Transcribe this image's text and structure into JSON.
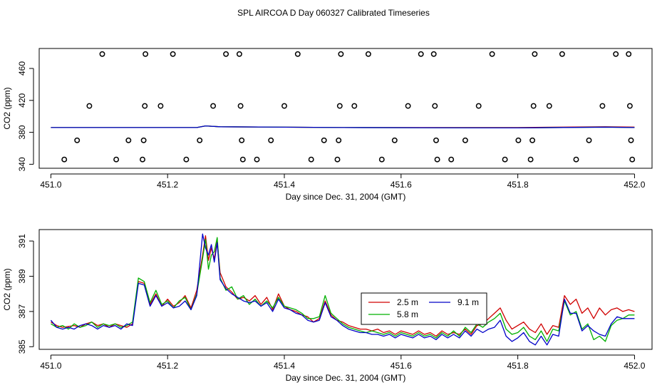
{
  "title": "SPL AIRCOA D  Day 060327  Calibrated Timeseries",
  "chart_data": [
    {
      "type": "scatter",
      "title": "SPL AIRCOA D  Day 060327  Calibrated Timeseries",
      "xlabel": "Day since Dec. 31, 2004 (GMT)",
      "ylabel": "CO2 (ppm)",
      "xlim": [
        450.98,
        452.03
      ],
      "ylim": [
        335,
        485
      ],
      "xticks": [
        451.0,
        451.2,
        451.4,
        451.6,
        451.8,
        452.0
      ],
      "xtick_labels": [
        "451.0",
        "451.2",
        "451.4",
        "451.6",
        "451.8",
        "452.0"
      ],
      "yticks": [
        340,
        380,
        420,
        460
      ],
      "ytick_labels": [
        "340",
        "380",
        "420",
        "460"
      ],
      "points": [
        [
          451.023,
          346
        ],
        [
          451.045,
          370
        ],
        [
          451.066,
          413
        ],
        [
          451.088,
          478
        ],
        [
          451.112,
          346
        ],
        [
          451.133,
          370
        ],
        [
          451.157,
          346
        ],
        [
          451.159,
          370
        ],
        [
          451.161,
          413
        ],
        [
          451.162,
          478
        ],
        [
          451.188,
          413
        ],
        [
          451.209,
          478
        ],
        [
          451.232,
          346
        ],
        [
          451.255,
          370
        ],
        [
          451.278,
          413
        ],
        [
          451.3,
          478
        ],
        [
          451.323,
          478
        ],
        [
          451.325,
          413
        ],
        [
          451.327,
          370
        ],
        [
          451.329,
          346
        ],
        [
          451.353,
          346
        ],
        [
          451.377,
          370
        ],
        [
          451.4,
          413
        ],
        [
          451.423,
          478
        ],
        [
          451.446,
          346
        ],
        [
          451.468,
          370
        ],
        [
          451.491,
          346
        ],
        [
          451.493,
          370
        ],
        [
          451.495,
          413
        ],
        [
          451.497,
          478
        ],
        [
          451.52,
          413
        ],
        [
          451.544,
          478
        ],
        [
          451.567,
          346
        ],
        [
          451.589,
          370
        ],
        [
          451.612,
          413
        ],
        [
          451.634,
          478
        ],
        [
          451.656,
          478
        ],
        [
          451.658,
          413
        ],
        [
          451.66,
          370
        ],
        [
          451.662,
          346
        ],
        [
          451.686,
          346
        ],
        [
          451.71,
          370
        ],
        [
          451.733,
          413
        ],
        [
          451.756,
          478
        ],
        [
          451.778,
          346
        ],
        [
          451.801,
          370
        ],
        [
          451.822,
          346
        ],
        [
          451.825,
          370
        ],
        [
          451.827,
          413
        ],
        [
          451.829,
          478
        ],
        [
          451.854,
          413
        ],
        [
          451.876,
          478
        ],
        [
          451.9,
          346
        ],
        [
          451.922,
          370
        ],
        [
          451.945,
          413
        ],
        [
          451.968,
          478
        ],
        [
          451.99,
          478
        ],
        [
          451.992,
          413
        ],
        [
          451.994,
          370
        ],
        [
          451.996,
          346
        ]
      ],
      "series": [
        {
          "name": "2.5 m",
          "color": "#d00000",
          "x": [
            451.0,
            451.25,
            451.265,
            451.29,
            451.5,
            451.8,
            451.95,
            452.0
          ],
          "y": [
            386,
            386,
            388,
            387,
            386,
            386,
            387,
            386.5
          ]
        },
        {
          "name": "5.8 m",
          "color": "#00b000",
          "x": [
            451.0,
            451.25,
            451.265,
            451.29,
            451.5,
            451.8,
            451.95,
            452.0
          ],
          "y": [
            386,
            386,
            388,
            387,
            386,
            385.5,
            386.5,
            386
          ]
        },
        {
          "name": "9.1 m",
          "color": "#0000c8",
          "x": [
            451.0,
            451.25,
            451.265,
            451.29,
            451.5,
            451.8,
            451.95,
            452.0
          ],
          "y": [
            386,
            386,
            388,
            387,
            386,
            385.5,
            386.5,
            386
          ]
        }
      ]
    },
    {
      "type": "line",
      "xlabel": "Day since Dec. 31, 2004 (GMT)",
      "ylabel": "CO2 (ppm)",
      "xlim": [
        450.98,
        452.03
      ],
      "ylim": [
        384.85,
        391.65
      ],
      "xticks": [
        451.0,
        451.2,
        451.4,
        451.6,
        451.8,
        452.0
      ],
      "xtick_labels": [
        "451.0",
        "451.2",
        "451.4",
        "451.6",
        "451.8",
        "452.0"
      ],
      "yticks": [
        385,
        387,
        389,
        391
      ],
      "ytick_labels": [
        "385",
        "387",
        "389",
        "391"
      ],
      "series": [
        {
          "name": "2.5 m",
          "color": "#d00000",
          "x": [
            451.0,
            451.01,
            451.02,
            451.03,
            451.04,
            451.05,
            451.06,
            451.07,
            451.08,
            451.09,
            451.1,
            451.11,
            451.12,
            451.13,
            451.14,
            451.15,
            451.16,
            451.17,
            451.18,
            451.19,
            451.2,
            451.21,
            451.22,
            451.23,
            451.24,
            451.25,
            451.26,
            451.265,
            451.27,
            451.275,
            451.28,
            451.285,
            451.29,
            451.3,
            451.31,
            451.32,
            451.33,
            451.34,
            451.35,
            451.36,
            451.37,
            451.38,
            451.39,
            451.4,
            451.41,
            451.42,
            451.43,
            451.44,
            451.45,
            451.46,
            451.47,
            451.48,
            451.49,
            451.5,
            451.51,
            451.52,
            451.53,
            451.54,
            451.55,
            451.56,
            451.57,
            451.58,
            451.59,
            451.6,
            451.61,
            451.62,
            451.63,
            451.64,
            451.65,
            451.66,
            451.67,
            451.68,
            451.69,
            451.7,
            451.71,
            451.72,
            451.73,
            451.74,
            451.75,
            451.76,
            451.77,
            451.78,
            451.79,
            451.8,
            451.81,
            451.82,
            451.83,
            451.84,
            451.85,
            451.86,
            451.87,
            451.88,
            451.89,
            451.9,
            451.91,
            451.92,
            451.93,
            451.94,
            451.95,
            451.96,
            451.97,
            451.98,
            451.99,
            452.0
          ],
          "y": [
            386.4,
            386.2,
            386.1,
            386.15,
            386.2,
            386.1,
            386.3,
            386.4,
            386.2,
            386.3,
            386.1,
            386.3,
            386.2,
            386.1,
            386.3,
            388.7,
            388.6,
            387.4,
            388.0,
            387.3,
            387.7,
            387.3,
            387.5,
            387.9,
            387.2,
            388.2,
            390.2,
            391.3,
            389.9,
            390.6,
            390.0,
            391.0,
            389.2,
            388.4,
            388.1,
            387.7,
            387.8,
            387.6,
            387.9,
            387.4,
            387.8,
            387.1,
            388.0,
            387.3,
            387.1,
            387.0,
            386.8,
            386.7,
            386.4,
            386.6,
            387.6,
            386.8,
            386.5,
            386.4,
            386.2,
            386.1,
            386.0,
            386.0,
            385.9,
            386.0,
            385.8,
            385.9,
            385.7,
            385.9,
            385.8,
            385.7,
            385.9,
            385.7,
            385.8,
            385.6,
            385.9,
            385.7,
            385.8,
            385.7,
            386.0,
            385.7,
            386.2,
            386.3,
            386.6,
            386.9,
            387.2,
            386.5,
            386.0,
            386.2,
            386.4,
            386.0,
            385.8,
            386.3,
            385.7,
            386.2,
            386.1,
            387.9,
            387.4,
            387.7,
            386.9,
            387.2,
            386.6,
            387.2,
            386.8,
            387.1,
            387.2,
            387.0,
            387.1,
            387.0
          ]
        },
        {
          "name": "5.8 m",
          "color": "#00b000",
          "x": [
            451.0,
            451.01,
            451.02,
            451.03,
            451.04,
            451.05,
            451.06,
            451.07,
            451.08,
            451.09,
            451.1,
            451.11,
            451.12,
            451.13,
            451.14,
            451.15,
            451.16,
            451.17,
            451.18,
            451.19,
            451.2,
            451.21,
            451.22,
            451.23,
            451.24,
            451.25,
            451.26,
            451.265,
            451.27,
            451.275,
            451.28,
            451.285,
            451.29,
            451.3,
            451.31,
            451.32,
            451.33,
            451.34,
            451.35,
            451.36,
            451.37,
            451.38,
            451.39,
            451.4,
            451.41,
            451.42,
            451.43,
            451.44,
            451.45,
            451.46,
            451.47,
            451.48,
            451.49,
            451.5,
            451.51,
            451.52,
            451.53,
            451.54,
            451.55,
            451.56,
            451.57,
            451.58,
            451.59,
            451.6,
            451.61,
            451.62,
            451.63,
            451.64,
            451.65,
            451.66,
            451.67,
            451.68,
            451.69,
            451.7,
            451.71,
            451.72,
            451.73,
            451.74,
            451.75,
            451.76,
            451.77,
            451.78,
            451.79,
            451.8,
            451.81,
            451.82,
            451.83,
            451.84,
            451.85,
            451.86,
            451.87,
            451.88,
            451.89,
            451.9,
            451.91,
            451.92,
            451.93,
            451.94,
            451.95,
            451.96,
            451.97,
            451.98,
            451.99,
            452.0
          ],
          "y": [
            386.3,
            386.1,
            386.2,
            386.0,
            386.3,
            386.1,
            386.2,
            386.4,
            386.1,
            386.3,
            386.2,
            386.3,
            386.1,
            386.2,
            386.4,
            388.9,
            388.7,
            387.5,
            388.2,
            387.4,
            387.6,
            387.2,
            387.6,
            387.8,
            387.1,
            388.0,
            390.0,
            391.1,
            389.4,
            390.2,
            390.4,
            391.2,
            388.9,
            388.2,
            388.4,
            387.7,
            387.9,
            387.4,
            387.7,
            387.3,
            387.6,
            387.2,
            387.8,
            387.3,
            387.2,
            387.1,
            386.9,
            386.6,
            386.6,
            386.7,
            387.9,
            386.9,
            386.6,
            386.3,
            386.1,
            386.0,
            385.9,
            385.8,
            385.9,
            385.8,
            385.7,
            385.8,
            385.6,
            385.8,
            385.7,
            385.6,
            385.8,
            385.6,
            385.7,
            385.5,
            385.8,
            385.6,
            385.9,
            385.6,
            386.1,
            385.8,
            386.3,
            386.1,
            386.4,
            386.6,
            386.9,
            386.0,
            385.7,
            385.8,
            386.1,
            385.6,
            385.4,
            385.9,
            385.3,
            386.0,
            385.9,
            387.6,
            386.8,
            387.0,
            386.0,
            386.3,
            385.4,
            385.6,
            385.3,
            386.2,
            386.5,
            386.6,
            386.8,
            386.8
          ]
        },
        {
          "name": "9.1 m",
          "color": "#0000c8",
          "x": [
            451.0,
            451.01,
            451.02,
            451.03,
            451.04,
            451.05,
            451.06,
            451.07,
            451.08,
            451.09,
            451.1,
            451.11,
            451.12,
            451.13,
            451.14,
            451.15,
            451.16,
            451.17,
            451.18,
            451.19,
            451.2,
            451.21,
            451.22,
            451.23,
            451.24,
            451.25,
            451.26,
            451.265,
            451.27,
            451.275,
            451.28,
            451.285,
            451.29,
            451.3,
            451.31,
            451.32,
            451.33,
            451.34,
            451.35,
            451.36,
            451.37,
            451.38,
            451.39,
            451.4,
            451.41,
            451.42,
            451.43,
            451.44,
            451.45,
            451.46,
            451.47,
            451.48,
            451.49,
            451.5,
            451.51,
            451.52,
            451.53,
            451.54,
            451.55,
            451.56,
            451.57,
            451.58,
            451.59,
            451.6,
            451.61,
            451.62,
            451.63,
            451.64,
            451.65,
            451.66,
            451.67,
            451.68,
            451.69,
            451.7,
            451.71,
            451.72,
            451.73,
            451.74,
            451.75,
            451.76,
            451.77,
            451.78,
            451.79,
            451.8,
            451.81,
            451.82,
            451.83,
            451.84,
            451.85,
            451.86,
            451.87,
            451.88,
            451.89,
            451.9,
            451.91,
            451.92,
            451.93,
            451.94,
            451.95,
            451.96,
            451.97,
            451.98,
            451.99,
            452.0
          ],
          "y": [
            386.5,
            386.1,
            386.0,
            386.1,
            386.0,
            386.2,
            386.3,
            386.2,
            386.0,
            386.2,
            386.1,
            386.2,
            386.0,
            386.3,
            386.2,
            388.6,
            388.5,
            387.3,
            387.9,
            387.3,
            387.5,
            387.2,
            387.3,
            387.6,
            387.1,
            387.9,
            391.4,
            390.6,
            390.2,
            390.8,
            389.8,
            390.9,
            388.8,
            388.3,
            388.0,
            387.8,
            387.6,
            387.5,
            387.6,
            387.3,
            387.5,
            387.0,
            387.7,
            387.2,
            387.1,
            386.9,
            386.8,
            386.5,
            386.4,
            386.5,
            387.5,
            386.7,
            386.5,
            386.2,
            386.0,
            385.9,
            385.8,
            385.8,
            385.7,
            385.7,
            385.6,
            385.7,
            385.5,
            385.7,
            385.6,
            385.5,
            385.7,
            385.5,
            385.6,
            385.4,
            385.7,
            385.5,
            385.7,
            385.5,
            385.9,
            385.6,
            386.0,
            385.8,
            386.0,
            386.1,
            386.5,
            385.6,
            385.3,
            385.5,
            385.8,
            385.3,
            385.1,
            385.6,
            385.1,
            385.7,
            385.6,
            387.7,
            386.9,
            386.9,
            385.9,
            386.2,
            385.9,
            385.7,
            385.6,
            386.3,
            386.7,
            386.6,
            386.6,
            386.6
          ]
        }
      ],
      "legend": {
        "placement": "center-right",
        "entries": [
          "2.5 m",
          "9.1 m",
          "5.8 m"
        ]
      }
    }
  ]
}
